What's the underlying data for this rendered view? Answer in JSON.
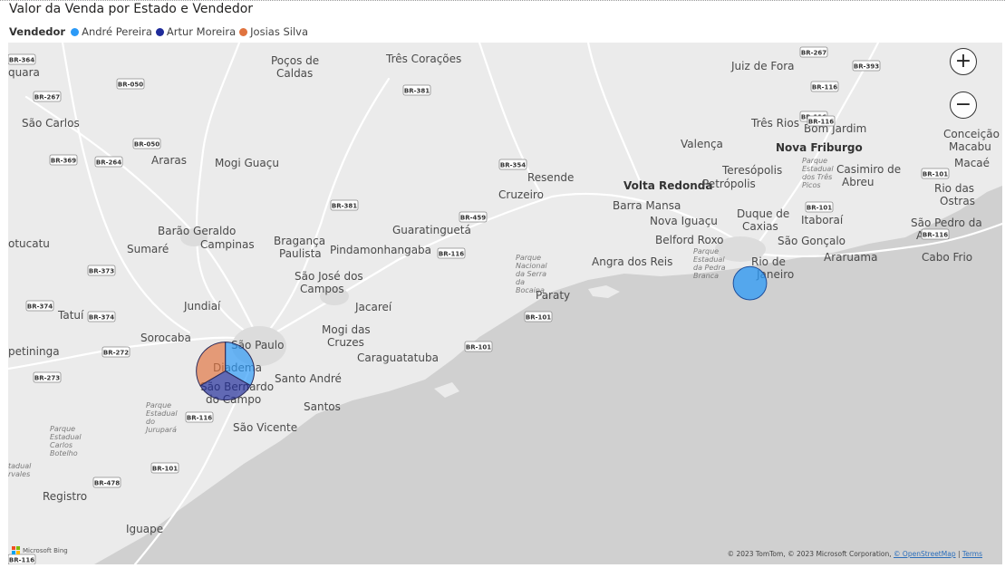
{
  "title": "Valor da Venda por Estado e Vendedor",
  "legend": {
    "title": "Vendedor",
    "items": [
      {
        "name": "André Pereira",
        "color": "#2b9af7"
      },
      {
        "name": "Artur Moreira",
        "color": "#1f2b9a"
      },
      {
        "name": "Josias Silva",
        "color": "#e0733f"
      }
    ]
  },
  "map": {
    "zoom_in_label": "+",
    "zoom_out_label": "−",
    "logo_text": "Microsoft Bing",
    "attribution": {
      "prefix": "© 2023 TomTom, © 2023 Microsoft Corporation,",
      "osm_link": "© OpenStreetMap",
      "terms_link": "Terms"
    },
    "places": [
      "São Paulo",
      "Rio de Janeiro",
      "Poços de Caldas",
      "Três Corações",
      "Juiz de Fora",
      "Três Rios",
      "Bom Jardim",
      "Conceição de Macabu",
      "Macaé",
      "Nova Friburgo",
      "Valença",
      "Teresópolis",
      "Casimiro de Abreu",
      "Rio das Ostras",
      "Volta Redonda",
      "Petrópolis",
      "Resende",
      "Barra Mansa",
      "Duque de Caxias",
      "Itaboraí",
      "São Pedro da Aldeia",
      "Nova Iguaçu",
      "Belford Roxo",
      "São Gonçalo",
      "Araruama",
      "Cabo Frio",
      "Angra dos Reis",
      "Paraty",
      "Cruzeiro",
      "Guaratinguetá",
      "Pindamonhangaba",
      "Bragança Paulista",
      "São José dos Campos",
      "Jacareí",
      "Mogi das Cruzes",
      "Caraguatatuba",
      "Santo André",
      "Santos",
      "São Vicente",
      "São Bernardo do Campo",
      "Diadema",
      "Sorocaba",
      "Jundiaí",
      "Campinas",
      "Sumaré",
      "Barão Geraldo",
      "Mogi Guaçu",
      "Araras",
      "São Carlos",
      "Tatuí",
      "Registro",
      "Iguape",
      "quara",
      "otucatu",
      "petininga"
    ],
    "parks": [
      "Parque Nacional da Serra da Bocaina",
      "Parque Estadual da Pedra Branca",
      "Parque Estadual dos Três Picos",
      "Parque Estadual do Jurupará",
      "Parque Estadual Carlos Botelho",
      "tadual rvales"
    ],
    "highways": [
      "BR-364",
      "BR-267",
      "BR-050",
      "BR-050",
      "BR-369",
      "BR-264",
      "BR-381",
      "BR-381",
      "BR-354",
      "BR-459",
      "BR-116",
      "BR-373",
      "BR-374",
      "BR-374",
      "BR-272",
      "BR-273",
      "BR-116",
      "BR-101",
      "BR-101",
      "BR-101",
      "BR-478",
      "BR-116",
      "BR-101",
      "BR-267",
      "BR-393",
      "BR-116",
      "BR-116",
      "BR-116",
      "BR-101",
      "BR-116"
    ]
  },
  "chart_data": {
    "type": "pie",
    "title": "Valor da Venda por Estado e Vendedor",
    "legend_title": "Vendedor",
    "legend_position": "top-left",
    "series_names": [
      "André Pereira",
      "Artur Moreira",
      "Josias Silva"
    ],
    "series_colors": [
      "#2b9af7",
      "#1f2b9a",
      "#e0733f"
    ],
    "locations": [
      {
        "name": "São Paulo",
        "lon": -46.63,
        "lat": -23.55,
        "relative_size": 1.0,
        "slices": [
          {
            "name": "André Pereira",
            "share": 0.333
          },
          {
            "name": "Artur Moreira",
            "share": 0.333
          },
          {
            "name": "Josias Silva",
            "share": 0.334
          }
        ]
      },
      {
        "name": "Rio de Janeiro",
        "lon": -43.2,
        "lat": -22.9,
        "relative_size": 0.3,
        "slices": [
          {
            "name": "André Pereira",
            "share": 1.0
          }
        ]
      }
    ]
  }
}
